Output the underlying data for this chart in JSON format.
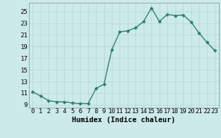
{
  "x": [
    0,
    1,
    2,
    3,
    4,
    5,
    6,
    7,
    8,
    9,
    10,
    11,
    12,
    13,
    14,
    15,
    16,
    17,
    18,
    19,
    20,
    21,
    22,
    23
  ],
  "y": [
    11.2,
    10.5,
    9.7,
    9.5,
    9.5,
    9.3,
    9.2,
    9.2,
    11.8,
    12.5,
    18.5,
    21.5,
    21.7,
    22.2,
    23.3,
    25.6,
    23.3,
    24.5,
    24.3,
    24.4,
    23.2,
    21.3,
    19.7,
    18.3
  ],
  "line_color": "#2d7d6e",
  "marker_color": "#2d7d6e",
  "bg_color": "#cceaea",
  "grid_color": "#b8d8d8",
  "xlabel": "Humidex (Indice chaleur)",
  "xlim": [
    -0.5,
    23.5
  ],
  "ylim": [
    8.5,
    26.5
  ],
  "yticks": [
    9,
    11,
    13,
    15,
    17,
    19,
    21,
    23,
    25
  ],
  "xticks": [
    0,
    1,
    2,
    3,
    4,
    5,
    6,
    7,
    8,
    9,
    10,
    11,
    12,
    13,
    14,
    15,
    16,
    17,
    18,
    19,
    20,
    21,
    22,
    23
  ],
  "xlabel_fontsize": 7.5,
  "tick_fontsize": 6.5,
  "line_width": 1.0,
  "marker_size": 2.5
}
